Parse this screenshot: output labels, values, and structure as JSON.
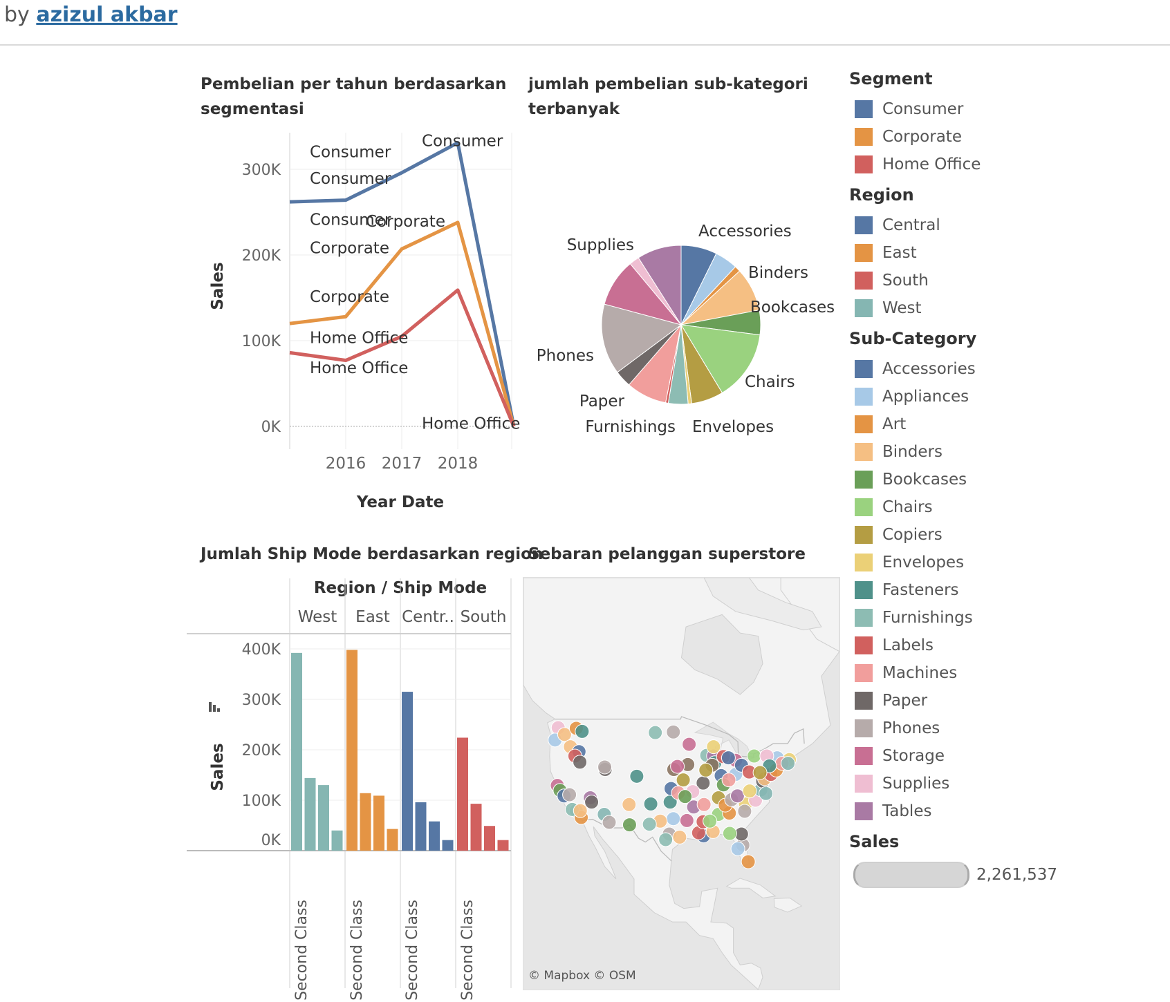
{
  "byline": {
    "prefix": "by",
    "author": "azizul akbar"
  },
  "titles": {
    "line_l1": "Pembelian per tahun berdasarkan",
    "line_l2": "segmentasi",
    "pie_l1": "jumlah pembelian sub-kategori",
    "pie_l2": "terbanyak",
    "bar": "Jumlah Ship Mode berdasarkan region",
    "map": "Sebaran pelanggan superstore"
  },
  "map": {
    "credit": "© Mapbox  © OSM"
  },
  "colors": {
    "Consumer": "#5677a4",
    "Corporate": "#e49444",
    "Home Office": "#d1605e",
    "Central": "#5677a4",
    "East": "#e49444",
    "South": "#d1605e",
    "West": "#85b6b2"
  },
  "legend": {
    "segment": {
      "title": "Segment",
      "items": [
        {
          "label": "Consumer",
          "color": "#5677a4"
        },
        {
          "label": "Corporate",
          "color": "#e49444"
        },
        {
          "label": "Home Office",
          "color": "#d1605e"
        }
      ]
    },
    "region": {
      "title": "Region",
      "items": [
        {
          "label": "Central",
          "color": "#5677a4"
        },
        {
          "label": "East",
          "color": "#e49444"
        },
        {
          "label": "South",
          "color": "#d1605e"
        },
        {
          "label": "West",
          "color": "#85b6b2"
        }
      ]
    },
    "subcategory": {
      "title": "Sub-Category",
      "items": [
        {
          "label": "Accessories",
          "color": "#5677a4"
        },
        {
          "label": "Appliances",
          "color": "#a7c9e7"
        },
        {
          "label": "Art",
          "color": "#e49444"
        },
        {
          "label": "Binders",
          "color": "#f5bf83"
        },
        {
          "label": "Bookcases",
          "color": "#6a9f58"
        },
        {
          "label": "Chairs",
          "color": "#9ad27f"
        },
        {
          "label": "Copiers",
          "color": "#b49d43"
        },
        {
          "label": "Envelopes",
          "color": "#ebd077"
        },
        {
          "label": "Fasteners",
          "color": "#4f918a"
        },
        {
          "label": "Furnishings",
          "color": "#8dbcb3"
        },
        {
          "label": "Labels",
          "color": "#d1605e"
        },
        {
          "label": "Machines",
          "color": "#f19e9c"
        },
        {
          "label": "Paper",
          "color": "#6f6867"
        },
        {
          "label": "Phones",
          "color": "#b6abaa"
        },
        {
          "label": "Storage",
          "color": "#c86f93"
        },
        {
          "label": "Supplies",
          "color": "#efbed2"
        },
        {
          "label": "Tables",
          "color": "#a97aa4"
        }
      ]
    },
    "sales": {
      "title": "Sales",
      "value": "2,261,537"
    }
  },
  "chart_data": [
    {
      "type": "line",
      "title": "Pembelian per tahun berdasarkan segmentasi",
      "xlabel": "Year Date",
      "ylabel": "Sales",
      "x": [
        2015,
        2016,
        2017,
        2018,
        2019
      ],
      "x_tick_labels": [
        "2016",
        "2017",
        "2018"
      ],
      "y_tick_labels": [
        "0K",
        "100K",
        "200K",
        "300K"
      ],
      "ylim": [
        0,
        350000
      ],
      "series": [
        {
          "name": "Consumer",
          "values": [
            262000,
            264000,
            296000,
            331000,
            0
          ]
        },
        {
          "name": "Corporate",
          "values": [
            120000,
            128000,
            207000,
            238000,
            0
          ]
        },
        {
          "name": "Home Office",
          "values": [
            86000,
            77000,
            105000,
            159000,
            0
          ]
        }
      ],
      "data_labels": [
        {
          "text": "Consumer",
          "series": "Consumer",
          "x": 2016,
          "y": 314000
        },
        {
          "text": "Consumer",
          "series": "Consumer",
          "x": 2016,
          "y": 283000
        },
        {
          "text": "Consumer",
          "series": "Consumer",
          "x": 2018,
          "y": 327000
        },
        {
          "text": "Consumer",
          "series": "Consumer",
          "x": 2016,
          "y": 235000
        },
        {
          "text": "Corporate",
          "series": "Corporate",
          "x": 2017,
          "y": 233000
        },
        {
          "text": "Corporate",
          "series": "Corporate",
          "x": 2016,
          "y": 202000
        },
        {
          "text": "Corporate",
          "series": "Corporate",
          "x": 2016,
          "y": 145000
        },
        {
          "text": "Home Office",
          "series": "Home Office",
          "x": 2016,
          "y": 97000
        },
        {
          "text": "Home Office",
          "series": "Home Office",
          "x": 2016,
          "y": 62000
        },
        {
          "text": "Home Office",
          "series": "Home Office",
          "x": 2018,
          "y": -3000
        }
      ],
      "grid": true
    },
    {
      "type": "pie",
      "title": "jumlah pembelian sub-kategori terbanyak",
      "slices": [
        {
          "label": "Accessories",
          "value": 167380,
          "color": "#5677a4",
          "show_label": true
        },
        {
          "label": "Appliances",
          "value": 107532,
          "color": "#a7c9e7",
          "show_label": false
        },
        {
          "label": "Art",
          "value": 27119,
          "color": "#e49444",
          "show_label": false
        },
        {
          "label": "Binders",
          "value": 203413,
          "color": "#f5bf83",
          "show_label": true
        },
        {
          "label": "Bookcases",
          "value": 114880,
          "color": "#6a9f58",
          "show_label": true
        },
        {
          "label": "Chairs",
          "value": 328449,
          "color": "#9ad27f",
          "show_label": true
        },
        {
          "label": "Copiers",
          "value": 149528,
          "color": "#b49d43",
          "show_label": false
        },
        {
          "label": "Envelopes",
          "value": 16476,
          "color": "#ebd077",
          "show_label": true
        },
        {
          "label": "Furnishings",
          "value": 91705,
          "color": "#8dbcb3",
          "show_label": true
        },
        {
          "label": "Labels",
          "value": 12486,
          "color": "#d1605e",
          "show_label": false
        },
        {
          "label": "Machines",
          "value": 189239,
          "color": "#f19e9c",
          "show_label": false
        },
        {
          "label": "Paper",
          "value": 78479,
          "color": "#6f6867",
          "show_label": true
        },
        {
          "label": "Phones",
          "value": 330007,
          "color": "#b6abaa",
          "show_label": true
        },
        {
          "label": "Storage",
          "value": 223844,
          "color": "#c86f93",
          "show_label": false
        },
        {
          "label": "Supplies",
          "value": 46674,
          "color": "#efbed2",
          "show_label": true
        },
        {
          "label": "Tables",
          "value": 206966,
          "color": "#a97aa4",
          "show_label": false
        }
      ]
    },
    {
      "type": "bar",
      "title": "Jumlah Ship Mode berdasarkan region",
      "header": "Region / Ship Mode",
      "ylabel": "Sales",
      "ylim": [
        0,
        420000
      ],
      "y_tick_labels": [
        "0K",
        "100K",
        "200K",
        "300K",
        "400K"
      ],
      "category_label": "Second Class",
      "groups": [
        {
          "name": "West",
          "values": [
            392000,
            144000,
            130000,
            40000
          ]
        },
        {
          "name": "East",
          "values": [
            398000,
            114000,
            109000,
            43000
          ]
        },
        {
          "name": "Centr..",
          "values": [
            315000,
            96000,
            58000,
            21000
          ]
        },
        {
          "name": "South",
          "values": [
            224000,
            93000,
            49000,
            21000
          ]
        }
      ]
    },
    {
      "type": "scatter",
      "title": "Sebaran pelanggan superstore",
      "note": "customer locations plotted on map; color = Sub-Category",
      "points": [
        {
          "x": -122.3,
          "y": 47.6,
          "color": "#efbed2"
        },
        {
          "x": -123.0,
          "y": 45.6,
          "color": "#a7c9e7"
        },
        {
          "x": -120.9,
          "y": 46.5,
          "color": "#f5bf83"
        },
        {
          "x": -118.3,
          "y": 47.5,
          "color": "#e49444"
        },
        {
          "x": -117.0,
          "y": 47.0,
          "color": "#4f918a"
        },
        {
          "x": -119.6,
          "y": 44.5,
          "color": "#f5bf83"
        },
        {
          "x": -117.7,
          "y": 43.7,
          "color": "#5677a4"
        },
        {
          "x": -118.6,
          "y": 43.0,
          "color": "#d1605e"
        },
        {
          "x": -117.5,
          "y": 42.0,
          "color": "#6f6867"
        },
        {
          "x": -122.5,
          "y": 38.2,
          "color": "#c86f93"
        },
        {
          "x": -121.9,
          "y": 37.4,
          "color": "#6a9f58"
        },
        {
          "x": -121.0,
          "y": 36.5,
          "color": "#5677a4"
        },
        {
          "x": -119.8,
          "y": 36.7,
          "color": "#b6abaa"
        },
        {
          "x": -118.3,
          "y": 34.1,
          "color": "#85b6b2"
        },
        {
          "x": -117.2,
          "y": 33.0,
          "color": "#e49444"
        },
        {
          "x": -119.2,
          "y": 34.3,
          "color": "#8dbcb3"
        },
        {
          "x": -117.4,
          "y": 34.1,
          "color": "#f5bf83"
        },
        {
          "x": -115.2,
          "y": 36.2,
          "color": "#a97aa4"
        },
        {
          "x": -114.9,
          "y": 35.5,
          "color": "#6f6867"
        },
        {
          "x": -112.1,
          "y": 33.5,
          "color": "#85b6b2"
        },
        {
          "x": -111.0,
          "y": 32.2,
          "color": "#b6abaa"
        },
        {
          "x": -111.9,
          "y": 40.8,
          "color": "#6f6867"
        },
        {
          "x": -112.0,
          "y": 41.2,
          "color": "#b6abaa"
        },
        {
          "x": -106.6,
          "y": 35.1,
          "color": "#f5bf83"
        },
        {
          "x": -106.5,
          "y": 31.8,
          "color": "#6a9f58"
        },
        {
          "x": -104.9,
          "y": 39.7,
          "color": "#4f918a"
        },
        {
          "x": -97.5,
          "y": 35.5,
          "color": "#4f918a"
        },
        {
          "x": -96.8,
          "y": 32.8,
          "color": "#a7c9e7"
        },
        {
          "x": -97.7,
          "y": 30.3,
          "color": "#b6abaa"
        },
        {
          "x": -95.4,
          "y": 29.8,
          "color": "#f5bf83"
        },
        {
          "x": -98.5,
          "y": 29.4,
          "color": "#8dbcb3"
        },
        {
          "x": -93.3,
          "y": 44.9,
          "color": "#c86f93"
        },
        {
          "x": -93.6,
          "y": 41.6,
          "color": "#8b7462"
        },
        {
          "x": -96.7,
          "y": 40.8,
          "color": "#8b7462"
        },
        {
          "x": -95.9,
          "y": 41.3,
          "color": "#c86f93"
        },
        {
          "x": -94.6,
          "y": 39.1,
          "color": "#b49d43"
        },
        {
          "x": -90.2,
          "y": 38.6,
          "color": "#6f6867"
        },
        {
          "x": -92.3,
          "y": 34.7,
          "color": "#a97aa4"
        },
        {
          "x": -90.0,
          "y": 35.1,
          "color": "#f19e9c"
        },
        {
          "x": -90.1,
          "y": 30.0,
          "color": "#5677a4"
        },
        {
          "x": -91.2,
          "y": 30.5,
          "color": "#d1605e"
        },
        {
          "x": -89.4,
          "y": 43.1,
          "color": "#8dbcb3"
        },
        {
          "x": -87.9,
          "y": 43.0,
          "color": "#a97aa4"
        },
        {
          "x": -87.6,
          "y": 41.9,
          "color": "#4f918a"
        },
        {
          "x": -86.2,
          "y": 39.8,
          "color": "#5677a4"
        },
        {
          "x": -85.7,
          "y": 38.3,
          "color": "#6a9f58"
        },
        {
          "x": -86.8,
          "y": 36.2,
          "color": "#b49d43"
        },
        {
          "x": -86.8,
          "y": 33.5,
          "color": "#9ad27f"
        },
        {
          "x": -84.4,
          "y": 33.7,
          "color": "#e49444"
        },
        {
          "x": -83.0,
          "y": 40.0,
          "color": "#a7c9e7"
        },
        {
          "x": -83.0,
          "y": 42.3,
          "color": "#c86f93"
        },
        {
          "x": -84.5,
          "y": 39.1,
          "color": "#f19e9c"
        },
        {
          "x": -81.7,
          "y": 41.5,
          "color": "#5677a4"
        },
        {
          "x": -80.0,
          "y": 40.4,
          "color": "#d1605e"
        },
        {
          "x": -80.8,
          "y": 35.2,
          "color": "#ebd077"
        },
        {
          "x": -81.0,
          "y": 34.0,
          "color": "#b6abaa"
        },
        {
          "x": -78.6,
          "y": 35.8,
          "color": "#efbed2"
        },
        {
          "x": -77.4,
          "y": 37.5,
          "color": "#85b6b2"
        },
        {
          "x": -77.0,
          "y": 38.9,
          "color": "#6f6867"
        },
        {
          "x": -76.6,
          "y": 39.3,
          "color": "#f5bf83"
        },
        {
          "x": -75.2,
          "y": 40.0,
          "color": "#d1605e"
        },
        {
          "x": -74.0,
          "y": 40.7,
          "color": "#e49444"
        },
        {
          "x": -73.8,
          "y": 42.7,
          "color": "#a7c9e7"
        },
        {
          "x": -71.1,
          "y": 42.4,
          "color": "#ebd077"
        },
        {
          "x": -72.7,
          "y": 41.8,
          "color": "#f19e9c"
        },
        {
          "x": -71.4,
          "y": 41.8,
          "color": "#85b6b2"
        },
        {
          "x": -81.4,
          "y": 28.5,
          "color": "#b6abaa"
        },
        {
          "x": -82.5,
          "y": 27.9,
          "color": "#a7c9e7"
        },
        {
          "x": -80.2,
          "y": 25.8,
          "color": "#e49444"
        },
        {
          "x": -81.7,
          "y": 30.3,
          "color": "#6f6867"
        },
        {
          "x": -84.3,
          "y": 30.4,
          "color": "#9ad27f"
        },
        {
          "x": -88.0,
          "y": 30.7,
          "color": "#f5bf83"
        },
        {
          "x": -100.8,
          "y": 46.8,
          "color": "#8dbcb3"
        },
        {
          "x": -96.8,
          "y": 46.9,
          "color": "#b6abaa"
        },
        {
          "x": -87.9,
          "y": 44.5,
          "color": "#ebd077"
        },
        {
          "x": -85.7,
          "y": 42.9,
          "color": "#d1605e"
        },
        {
          "x": -84.6,
          "y": 42.7,
          "color": "#5677a4"
        },
        {
          "x": -88.2,
          "y": 41.5,
          "color": "#8b7462"
        },
        {
          "x": -89.6,
          "y": 40.7,
          "color": "#b49d43"
        },
        {
          "x": -92.5,
          "y": 37.2,
          "color": "#efbed2"
        },
        {
          "x": -97.3,
          "y": 37.7,
          "color": "#5677a4"
        },
        {
          "x": -95.7,
          "y": 37.0,
          "color": "#f19e9c"
        },
        {
          "x": -94.2,
          "y": 36.4,
          "color": "#6a9f58"
        },
        {
          "x": -99.7,
          "y": 32.4,
          "color": "#f5bf83"
        },
        {
          "x": -101.8,
          "y": 35.2,
          "color": "#4f918a"
        },
        {
          "x": -102.1,
          "y": 31.9,
          "color": "#8dbcb3"
        },
        {
          "x": -93.8,
          "y": 32.5,
          "color": "#c86f93"
        },
        {
          "x": -90.2,
          "y": 32.3,
          "color": "#d1605e"
        },
        {
          "x": -88.7,
          "y": 32.4,
          "color": "#9ad27f"
        },
        {
          "x": -85.3,
          "y": 35.0,
          "color": "#e49444"
        },
        {
          "x": -83.9,
          "y": 35.9,
          "color": "#b6abaa"
        },
        {
          "x": -82.6,
          "y": 36.5,
          "color": "#a97aa4"
        },
        {
          "x": -79.9,
          "y": 37.3,
          "color": "#ebd077"
        },
        {
          "x": -76.3,
          "y": 36.9,
          "color": "#85b6b2"
        },
        {
          "x": -78.9,
          "y": 43.0,
          "color": "#9ad27f"
        },
        {
          "x": -76.1,
          "y": 43.0,
          "color": "#efbed2"
        },
        {
          "x": -75.5,
          "y": 41.4,
          "color": "#4f918a"
        },
        {
          "x": -77.6,
          "y": 40.3,
          "color": "#b49d43"
        }
      ]
    }
  ]
}
